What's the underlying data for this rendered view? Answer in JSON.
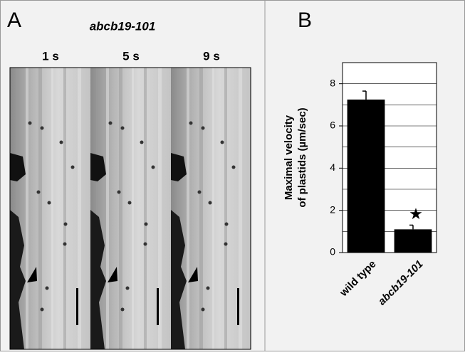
{
  "panel_a": {
    "label": "A",
    "title": "abcb19-101",
    "time_labels": [
      "1 s",
      "5 s",
      "9 s"
    ]
  },
  "chart_data": {
    "type": "bar",
    "panel_label": "B",
    "ylabel": [
      "Maximal velocity",
      "of plastids (µm/sec)"
    ],
    "categories": [
      "wild type",
      "abcb19-101"
    ],
    "values": [
      7.25,
      1.1
    ],
    "errors": [
      0.4,
      0.2
    ],
    "color": "#000000",
    "annotations": [
      {
        "text": "★",
        "category": 1
      }
    ],
    "ylim": [
      0,
      9
    ],
    "yticks": [
      0,
      2,
      4,
      6,
      8
    ],
    "yminorticks": [
      1,
      3,
      5,
      7,
      9
    ],
    "grid": true
  }
}
